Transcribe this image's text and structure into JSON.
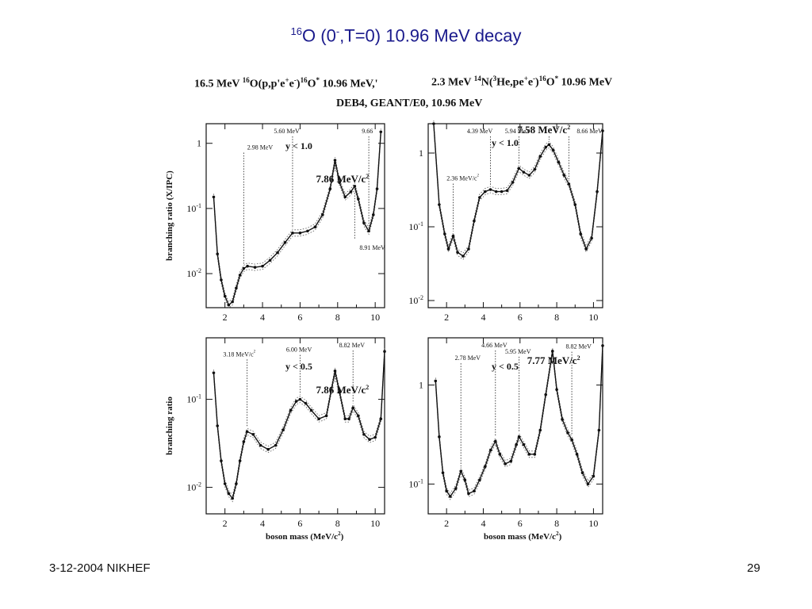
{
  "slide": {
    "title_sup": "16",
    "title_main": "O (0",
    "title_sup2": "-",
    "title_rest": ",T=0) 10.96 MeV decay",
    "footer_left": "3-12-2004 NIKHEF",
    "footer_right": "29"
  },
  "headers": {
    "left_a": "16.5 MeV ",
    "left_sup1": "16",
    "left_b": "O(p,p'e",
    "left_sup2": "+",
    "left_c": "e",
    "left_sup3": "-",
    "left_d": ")",
    "left_sup4": "16",
    "left_e": "O",
    "left_sup5": "*",
    "left_f": " 10.96 MeV,'",
    "right_a": "2.3 MeV ",
    "right_sup1": "14",
    "right_b": "N(",
    "right_sup2": "3",
    "right_c": "He,pe",
    "right_sup3": "+",
    "right_d": "e",
    "right_sup4": "-",
    "right_e": ")",
    "right_sup5": "16",
    "right_f": "O",
    "right_sup6": "*",
    "right_g": " 10.96 MeV",
    "sub": "DEB4, GEANT/E0, 10.96 MeV"
  },
  "chart_data": [
    {
      "id": "top-left",
      "type": "line",
      "log_y": true,
      "ylim": [
        0.003,
        2
      ],
      "xlim": [
        1,
        10.5
      ],
      "xticks": [
        2,
        4,
        6,
        8,
        10
      ],
      "xtick_labels": [
        "2",
        "4",
        "6",
        "8",
        "10"
      ],
      "yticks": [
        0.01,
        0.1,
        1
      ],
      "ytick_labels": [
        "10-2",
        "10-1",
        "1"
      ],
      "ylabel": "branching ratio (X/IPC)",
      "xlabel": "",
      "cut": "y < 1.0",
      "x": [
        1.4,
        1.6,
        1.8,
        2.0,
        2.2,
        2.4,
        2.6,
        2.8,
        3.0,
        3.2,
        3.6,
        4.0,
        4.4,
        4.8,
        5.2,
        5.6,
        6.0,
        6.4,
        6.8,
        7.2,
        7.6,
        7.86,
        8.1,
        8.4,
        8.7,
        8.91,
        9.1,
        9.4,
        9.66,
        9.9,
        10.1,
        10.3
      ],
      "y": [
        0.15,
        0.02,
        0.008,
        0.0045,
        0.0033,
        0.0037,
        0.006,
        0.0095,
        0.012,
        0.013,
        0.0125,
        0.013,
        0.016,
        0.021,
        0.03,
        0.042,
        0.042,
        0.045,
        0.052,
        0.08,
        0.2,
        0.55,
        0.25,
        0.15,
        0.18,
        0.22,
        0.14,
        0.06,
        0.045,
        0.08,
        0.2,
        1.5
      ],
      "annotations": [
        {
          "x": 3.0,
          "label": "2.98 MeV"
        },
        {
          "x": 5.6,
          "label": "5.60 MeV"
        },
        {
          "x": 9.66,
          "label": "9.66"
        },
        {
          "x": 8.91,
          "label": "8.91 MeV"
        },
        {
          "x": 7.86,
          "label": "7.86 MeV/c2"
        }
      ]
    },
    {
      "id": "top-right",
      "type": "line",
      "log_y": true,
      "ylim": [
        0.008,
        2.5
      ],
      "xlim": [
        1,
        10.5
      ],
      "xticks": [
        2,
        4,
        6,
        8,
        10
      ],
      "xtick_labels": [
        "2",
        "4",
        "6",
        "8",
        "10"
      ],
      "yticks": [
        0.01,
        0.1,
        1
      ],
      "ytick_labels": [
        "10-2",
        "10-1",
        "1"
      ],
      "ylabel": "",
      "xlabel": "",
      "cut": "y < 1.0",
      "x": [
        1.3,
        1.6,
        1.9,
        2.1,
        2.36,
        2.6,
        2.9,
        3.2,
        3.5,
        3.8,
        4.1,
        4.39,
        4.7,
        5.0,
        5.3,
        5.6,
        5.94,
        6.2,
        6.5,
        6.8,
        7.1,
        7.4,
        7.58,
        7.8,
        8.1,
        8.4,
        8.66,
        9.0,
        9.3,
        9.6,
        9.9,
        10.2,
        10.5
      ],
      "y": [
        2.5,
        0.2,
        0.08,
        0.05,
        0.075,
        0.045,
        0.04,
        0.05,
        0.12,
        0.25,
        0.3,
        0.32,
        0.3,
        0.3,
        0.31,
        0.4,
        0.62,
        0.55,
        0.5,
        0.6,
        0.9,
        1.2,
        1.3,
        1.1,
        0.75,
        0.5,
        0.38,
        0.2,
        0.08,
        0.05,
        0.07,
        0.3,
        2.0
      ],
      "annotations": [
        {
          "x": 2.36,
          "label": "2.36 MeV/c2"
        },
        {
          "x": 4.39,
          "label": "4.39 MeV"
        },
        {
          "x": 5.94,
          "label": "5.94 MeV"
        },
        {
          "x": 8.66,
          "label": "8.66 MeV"
        },
        {
          "x": 7.58,
          "label": "7.58 MeV/c2"
        }
      ]
    },
    {
      "id": "bottom-left",
      "type": "line",
      "log_y": true,
      "ylim": [
        0.005,
        0.5
      ],
      "xlim": [
        1,
        10.5
      ],
      "xticks": [
        2,
        4,
        6,
        8,
        10
      ],
      "xtick_labels": [
        "2",
        "4",
        "6",
        "8",
        "10"
      ],
      "yticks": [
        0.01,
        0.1
      ],
      "ytick_labels": [
        "10-2",
        "10-1"
      ],
      "ylabel": "branching ratio",
      "xlabel": "boson mass (MeV/c2)",
      "cut": "y < 0.5",
      "x": [
        1.4,
        1.6,
        1.8,
        2.0,
        2.2,
        2.4,
        2.6,
        2.8,
        3.0,
        3.18,
        3.5,
        3.9,
        4.3,
        4.7,
        5.1,
        5.5,
        5.8,
        6.0,
        6.3,
        6.6,
        7.0,
        7.4,
        7.86,
        8.1,
        8.4,
        8.6,
        8.82,
        9.1,
        9.4,
        9.7,
        10.0,
        10.3,
        10.5
      ],
      "y": [
        0.2,
        0.05,
        0.02,
        0.011,
        0.0085,
        0.0075,
        0.011,
        0.02,
        0.033,
        0.043,
        0.04,
        0.03,
        0.027,
        0.03,
        0.045,
        0.075,
        0.095,
        0.1,
        0.09,
        0.075,
        0.06,
        0.065,
        0.21,
        0.12,
        0.06,
        0.06,
        0.08,
        0.065,
        0.04,
        0.035,
        0.037,
        0.06,
        0.35
      ],
      "annotations": [
        {
          "x": 3.18,
          "label": "3.18 MeV/c2"
        },
        {
          "x": 6.0,
          "label": "6.00 MeV"
        },
        {
          "x": 8.82,
          "label": "8.82 MeV"
        },
        {
          "x": 7.86,
          "label": "7.86 MeV/c2"
        }
      ]
    },
    {
      "id": "bottom-right",
      "type": "line",
      "log_y": true,
      "ylim": [
        0.05,
        3
      ],
      "xlim": [
        1,
        10.5
      ],
      "xticks": [
        2,
        4,
        6,
        8,
        10
      ],
      "xtick_labels": [
        "2",
        "4",
        "6",
        "8",
        "10"
      ],
      "yticks": [
        0.1,
        1
      ],
      "ytick_labels": [
        "10-1",
        "1"
      ],
      "ylabel": "",
      "xlabel": "boson mass (MeV/c2)",
      "cut": "y < 0.5",
      "x": [
        1.4,
        1.6,
        1.8,
        2.0,
        2.2,
        2.5,
        2.78,
        3.0,
        3.2,
        3.5,
        3.8,
        4.1,
        4.4,
        4.66,
        4.9,
        5.2,
        5.5,
        5.8,
        5.95,
        6.2,
        6.5,
        6.8,
        7.1,
        7.4,
        7.77,
        8.0,
        8.3,
        8.6,
        8.82,
        9.1,
        9.4,
        9.7,
        10.0,
        10.3,
        10.5
      ],
      "y": [
        1.1,
        0.3,
        0.13,
        0.085,
        0.075,
        0.09,
        0.135,
        0.11,
        0.08,
        0.085,
        0.11,
        0.15,
        0.22,
        0.27,
        0.2,
        0.16,
        0.17,
        0.25,
        0.3,
        0.25,
        0.2,
        0.2,
        0.35,
        0.8,
        2.2,
        0.9,
        0.45,
        0.33,
        0.28,
        0.2,
        0.13,
        0.1,
        0.12,
        0.35,
        2.5
      ],
      "annotations": [
        {
          "x": 2.78,
          "label": "2.78 MeV"
        },
        {
          "x": 4.66,
          "label": "4.66 MeV"
        },
        {
          "x": 5.95,
          "label": "5.95 MeV"
        },
        {
          "x": 8.82,
          "label": "8.82 MeV"
        },
        {
          "x": 7.77,
          "label": "7.77 MeV/c2"
        }
      ]
    }
  ]
}
